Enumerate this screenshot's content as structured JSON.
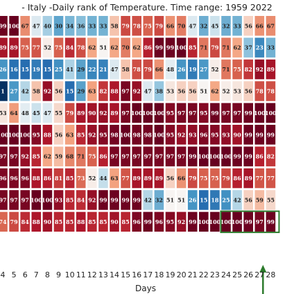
{
  "chart_data": {
    "type": "heatmap",
    "title": "- Italy -Daily rank of Temperature. Time range: 1959 2022",
    "xlabel": "Days",
    "ylabel": "",
    "x_ticks": [
      "4",
      "5",
      "6",
      "7",
      "8",
      "9",
      "10",
      "11",
      "12",
      "13",
      "14",
      "15",
      "16",
      "17",
      "18",
      "19",
      "20",
      "21",
      "22",
      "23",
      "24",
      "25",
      "26",
      "27",
      "28"
    ],
    "first_col_partial": "1",
    "last_col_partial": "5",
    "values": [
      [
        "99",
        "100",
        "67",
        "47",
        "40",
        "30",
        "34",
        "36",
        "33",
        "33",
        "58",
        "79",
        "78",
        "75",
        "79",
        "66",
        "70",
        "47",
        "32",
        "45",
        "32",
        "33",
        "56",
        "66",
        "67"
      ],
      [
        "89",
        "89",
        "75",
        "77",
        "52",
        "75",
        "84",
        "78",
        "62",
        "51",
        "62",
        "70",
        "62",
        "86",
        "99",
        "99",
        "100",
        "85",
        "71",
        "79",
        "71",
        "62",
        "37",
        "23",
        "33"
      ],
      [
        "26",
        "16",
        "15",
        "19",
        "15",
        "25",
        "41",
        "29",
        "22",
        "21",
        "47",
        "58",
        "78",
        "79",
        "66",
        "48",
        "26",
        "19",
        "27",
        "52",
        "71",
        "75",
        "82",
        "92",
        "89"
      ],
      [
        "1",
        "27",
        "42",
        "58",
        "92",
        "56",
        "15",
        "29",
        "63",
        "82",
        "88",
        "97",
        "92",
        "47",
        "38",
        "53",
        "56",
        "56",
        "51",
        "62",
        "52",
        "53",
        "56",
        "78",
        "78"
      ],
      [
        "53",
        "64",
        "48",
        "45",
        "47",
        "55",
        "79",
        "89",
        "90",
        "92",
        "89",
        "97",
        "100",
        "100",
        "100",
        "95",
        "97",
        "97",
        "95",
        "99",
        "97",
        "97",
        "99",
        "100",
        "100"
      ],
      [
        "100",
        "100",
        "100",
        "95",
        "88",
        "56",
        "63",
        "85",
        "92",
        "95",
        "98",
        "100",
        "98",
        "98",
        "100",
        "95",
        "92",
        "93",
        "96",
        "95",
        "93",
        "90",
        "99",
        "99",
        "99"
      ],
      [
        "97",
        "97",
        "92",
        "85",
        "62",
        "59",
        "68",
        "71",
        "75",
        "86",
        "97",
        "97",
        "97",
        "97",
        "97",
        "97",
        "97",
        "99",
        "100",
        "100",
        "100",
        "99",
        "99",
        "86",
        "82"
      ],
      [
        "96",
        "96",
        "96",
        "88",
        "86",
        "81",
        "85",
        "73",
        "52",
        "44",
        "63",
        "77",
        "89",
        "89",
        "89",
        "56",
        "66",
        "79",
        "75",
        "75",
        "79",
        "86",
        "89",
        "77",
        "77"
      ],
      [
        "97",
        "97",
        "97",
        "100",
        "100",
        "93",
        "85",
        "84",
        "92",
        "99",
        "99",
        "99",
        "99",
        "42",
        "32",
        "51",
        "51",
        "26",
        "15",
        "18",
        "25",
        "42",
        "56",
        "59",
        "55"
      ],
      [
        "74",
        "79",
        "84",
        "88",
        "90",
        "85",
        "85",
        "88",
        "85",
        "85",
        "90",
        "85",
        "96",
        "99",
        "96",
        "95",
        "92",
        "99",
        "100",
        "100",
        "100",
        "100",
        "99",
        "97",
        "99"
      ]
    ],
    "colormap": "RdBu_r",
    "vmin": 1,
    "vmax": 100,
    "highlight": {
      "row": 9,
      "col_start": 20,
      "col_end": 24,
      "color": "#2b7a2b"
    },
    "arrow": {
      "col": 23,
      "color": "#2b7a2b"
    }
  }
}
